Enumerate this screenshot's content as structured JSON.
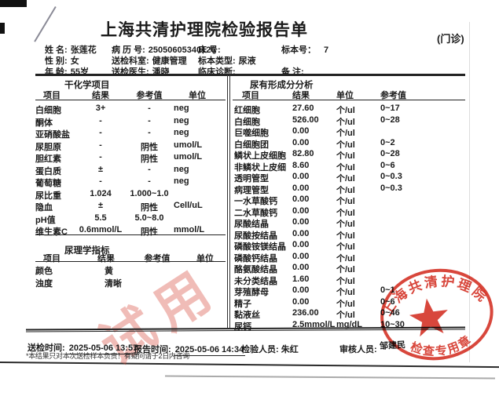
{
  "title": "上海共清护理院检验报告单",
  "visit_type": "(门诊)",
  "patient": {
    "name_label": "姓 名:",
    "name": "张莲花",
    "gender_label": "性 别:",
    "gender": "女",
    "age_label": "年 龄:",
    "age": "55岁",
    "record_label": "病 历 号:",
    "record_no": "25050605340126",
    "dept_label": "送检科室:",
    "dept": "健康管理",
    "doctor_label": "送检医生:",
    "doctor": "潘晓",
    "bed_label": "床    号:",
    "bed": "",
    "sample_type_label": "标本类型:",
    "sample_type": "尿液",
    "diagnosis_label": "临床诊断:",
    "diagnosis": "",
    "sample_no_label": "标本号：",
    "sample_no": "7",
    "remark_label": "备 注:",
    "remark": ""
  },
  "left_table": {
    "section1_title": "干化学项目",
    "headers": [
      "项目",
      "结果",
      "参考值",
      "单位"
    ],
    "rows": [
      [
        "白细胞",
        "3+",
        "-",
        "neg"
      ],
      [
        "酮体",
        "-",
        "-",
        "neg"
      ],
      [
        "亚硝酸盐",
        "-",
        "-",
        "neg"
      ],
      [
        "尿胆原",
        "-",
        "阴性",
        "umol/L"
      ],
      [
        "胆红素",
        "-",
        "阴性",
        "umol/L"
      ],
      [
        "蛋白质",
        "±",
        "-",
        "neg"
      ],
      [
        "葡萄糖",
        "-",
        "-",
        "neg"
      ],
      [
        "尿比重",
        "1.024",
        "1.000~1.0",
        ""
      ],
      [
        "隐血",
        "±",
        "阴性",
        "Cell/uL"
      ],
      [
        "pH值",
        "5.5",
        "5.0~8.0",
        ""
      ],
      [
        "维生素C",
        "0.6mmol/L",
        "阴性",
        "mmol/L"
      ]
    ],
    "section2_title": "尿理学指标",
    "headers2": [
      "项目",
      "结果",
      "参考值",
      "单位"
    ],
    "rows2": [
      [
        "颜色",
        "黄",
        "",
        ""
      ],
      [
        "浊度",
        "清晰",
        "",
        ""
      ]
    ]
  },
  "right_table": {
    "title": "尿有形成分分析",
    "headers": [
      "项目",
      "结果",
      "单位",
      "参考值"
    ],
    "rows": [
      [
        "红细胞",
        "27.60",
        "个/ul",
        "0~17"
      ],
      [
        "白细胞",
        "526.00",
        "个/ul",
        "0~28"
      ],
      [
        "巨噬细胞",
        "0.00",
        "个/ul",
        ""
      ],
      [
        "白细胞团",
        "0.00",
        "个/ul",
        "0~2"
      ],
      [
        "鳞状上皮细胞",
        "82.80",
        "个/ul",
        "0~28"
      ],
      [
        "非鳞状上皮细",
        "8.60",
        "个/ul",
        "0~6"
      ],
      [
        "透明管型",
        "0.00",
        "个/ul",
        "0~0.3"
      ],
      [
        "病理管型",
        "0.00",
        "个/ul",
        "0~0.3"
      ],
      [
        "一水草酸钙",
        "0.00",
        "个/ul",
        ""
      ],
      [
        "二水草酸钙",
        "0.00",
        "个/ul",
        ""
      ],
      [
        "尿酸结晶",
        "0.00",
        "个/ul",
        ""
      ],
      [
        "尿酸按结晶",
        "0.00",
        "个/ul",
        ""
      ],
      [
        "磷酸铵镁结晶",
        "0.00",
        "个/ul",
        ""
      ],
      [
        "磷酸钙结晶",
        "0.00",
        "个/ul",
        ""
      ],
      [
        "酪氨酸结晶",
        "0.00",
        "个/ul",
        ""
      ],
      [
        "未分类结晶",
        "1.60",
        "个/ul",
        ""
      ],
      [
        "芽殖酵母",
        "0.00",
        "个/ul",
        "0~1"
      ],
      [
        "精子",
        "0.00",
        "个/ul",
        "0~6"
      ],
      [
        "黏液丝",
        "236.00",
        "个/ul",
        "0~46"
      ],
      [
        "尿钙",
        "2.5mmol/L",
        "mg/dL",
        "10~30"
      ]
    ]
  },
  "footer": {
    "send_time_label": "送检时间:",
    "send_time": "2025-05-06 13:57",
    "report_time_label": "报告时间:",
    "report_time": "2025-05-06 14:34",
    "tester_label": "检验人员:",
    "tester": "朱红",
    "reviewer_label": "审核人员:",
    "reviewer": "邹建民",
    "note": "*本结果只对本次送检样本负责！有疑问请于2日内咨询"
  },
  "stamp": {
    "top_text": "上海共清护理院",
    "bottom_text": "检查专用章",
    "color": "#d5372b"
  },
  "watermark": {
    "text": "试用",
    "color": "rgba(214,68,56,0.36)"
  }
}
